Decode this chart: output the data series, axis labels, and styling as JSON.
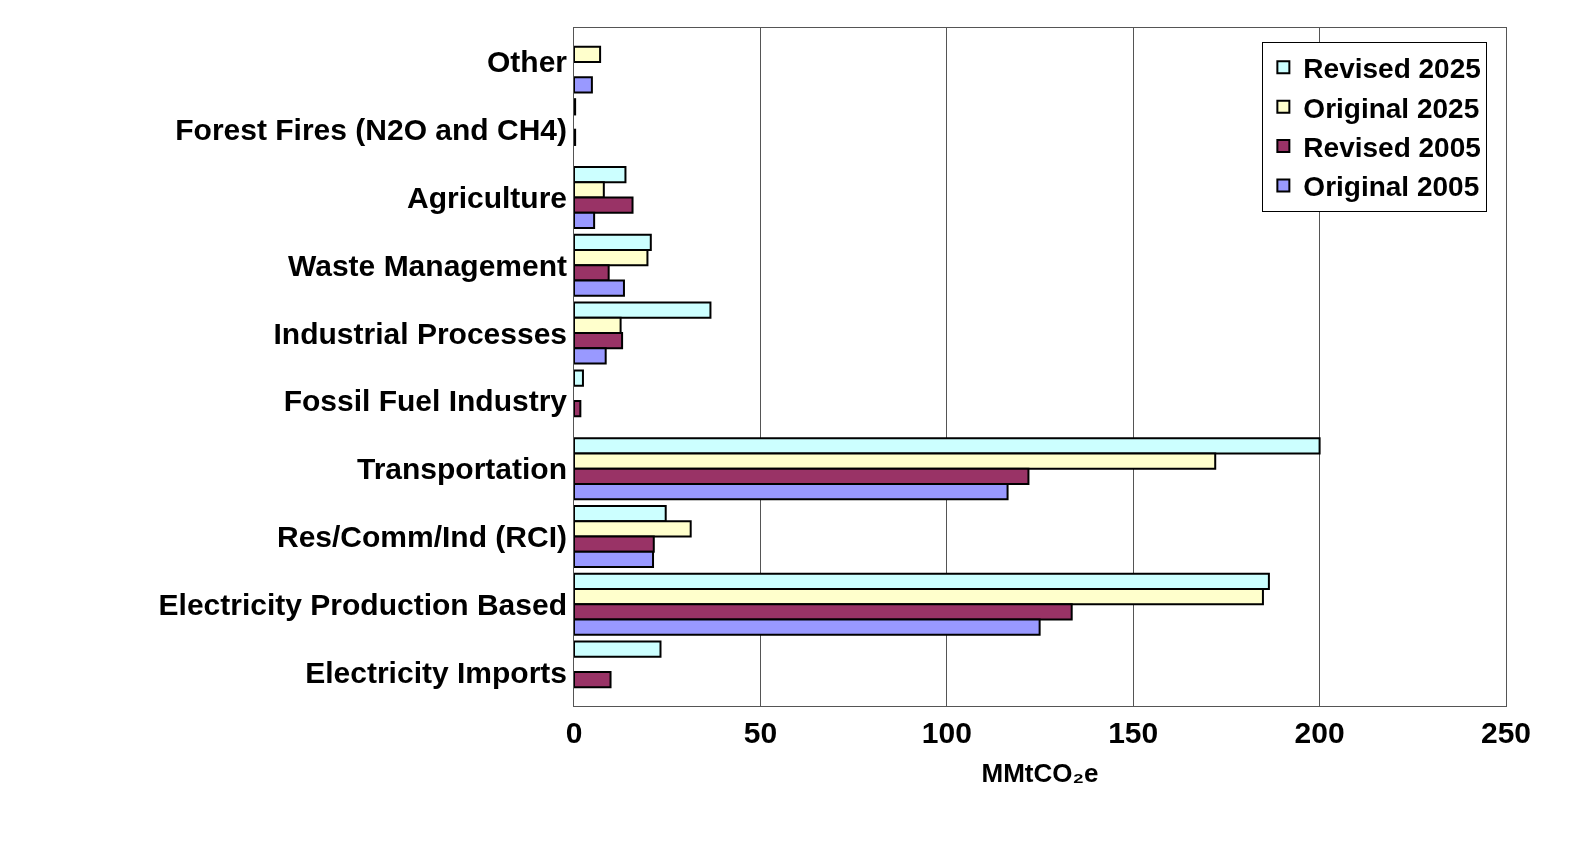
{
  "chart_data": {
    "type": "bar",
    "orientation": "horizontal",
    "xlabel": "MMtCO₂e",
    "categories": [
      "Other",
      "Forest Fires (N2O and CH4)",
      "Agriculture",
      "Waste Management",
      "Industrial Processes",
      "Fossil Fuel Industry",
      "Transportation",
      "Res/Comm/Ind (RCI)",
      "Electricity Production Based",
      "Electricity Imports"
    ],
    "series": [
      {
        "name": "Revised 2025",
        "color": "#ccffff",
        "values": [
          null,
          0.3,
          13.8,
          20.6,
          36.6,
          2.4,
          200,
          24.6,
          186.4,
          23.2
        ]
      },
      {
        "name": "Original 2025",
        "color": "#ffffcc",
        "values": [
          7.0,
          null,
          8.0,
          19.7,
          12.5,
          null,
          172,
          31.3,
          184.8,
          null
        ]
      },
      {
        "name": "Revised 2005",
        "color": "#993366",
        "values": [
          null,
          0.3,
          15.7,
          9.3,
          12.9,
          1.7,
          121.9,
          21.4,
          133.5,
          9.8
        ]
      },
      {
        "name": "Original 2005",
        "color": "#9999ff",
        "values": [
          4.8,
          null,
          5.4,
          13.4,
          8.5,
          null,
          116.3,
          21.2,
          124.9,
          null
        ]
      }
    ],
    "xlim": [
      0,
      250
    ],
    "xticks": [
      0,
      50,
      100,
      150,
      200,
      250
    ],
    "grid": "x",
    "legend": "top right"
  }
}
